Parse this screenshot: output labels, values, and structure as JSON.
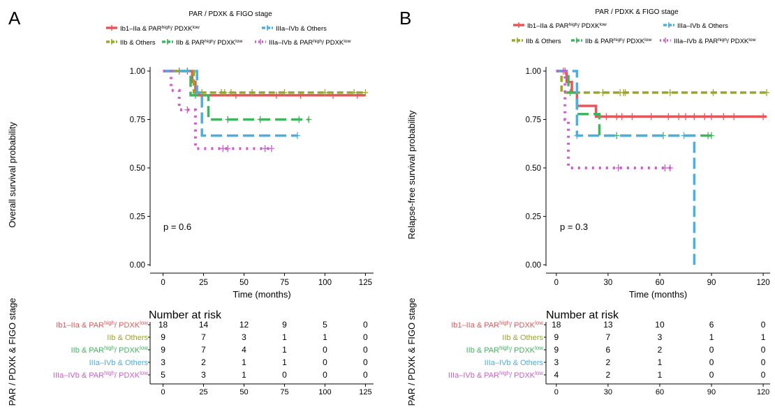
{
  "legend_title": "PAR / PDXK & FIGO stage",
  "strata_axis_label": "PAR / PDXK & FIGO stage",
  "risk_table_title": "Number at risk",
  "colors": {
    "red": "#E8555A",
    "olive": "#9AA52A",
    "green": "#3FB55F",
    "blue": "#4DAEE0",
    "magenta": "#CF5CCB"
  },
  "chart_data": [
    {
      "type": "line",
      "panel_label": "A",
      "title": "",
      "xlabel": "Time (months)",
      "ylabel": "Overall survival probability",
      "xlim": [
        -8,
        130
      ],
      "ylim": [
        0,
        1
      ],
      "x_ticks": [
        0,
        25,
        50,
        75,
        100,
        125
      ],
      "y_ticks": [
        "0.00",
        "0.25",
        "0.50",
        "0.75",
        "1.00"
      ],
      "annotation": "p = 0.6",
      "grid": false,
      "legend_position": "top",
      "series": [
        {
          "name_main": "Ib1–IIa & PAR",
          "name_sup1": "high",
          "name_mid": "/ PDXK",
          "name_sup2": "low",
          "color": "red",
          "dash": "solid",
          "legend_row": 0,
          "legend_col": 0,
          "steps": [
            [
              0,
              1.0
            ],
            [
              18,
              0.944
            ],
            [
              20,
              0.889
            ],
            [
              22,
              0.875
            ],
            [
              125,
              0.875
            ]
          ],
          "censors": [
            10,
            15,
            45,
            70,
            85,
            105,
            120
          ],
          "risk": [
            18,
            14,
            12,
            9,
            5,
            0
          ]
        },
        {
          "name_main": "IIb & Others",
          "name_sup1": "",
          "name_mid": "",
          "name_sup2": "",
          "color": "olive",
          "dash": "dash",
          "legend_row": 1,
          "legend_col": 0,
          "steps": [
            [
              0,
              1.0
            ],
            [
              19,
              0.889
            ],
            [
              125,
              0.889
            ]
          ],
          "censors": [
            24,
            36,
            38,
            42,
            55,
            75,
            100,
            118,
            125
          ],
          "risk": [
            9,
            7,
            3,
            1,
            1,
            0
          ]
        },
        {
          "name_main": "IIb & PAR",
          "name_sup1": "high",
          "name_mid": "/ PDXK",
          "name_sup2": "low",
          "color": "green",
          "dash": "longdash",
          "legend_row": 1,
          "legend_col": 1,
          "steps": [
            [
              0,
              1.0
            ],
            [
              17,
              0.875
            ],
            [
              28,
              0.75
            ],
            [
              90,
              0.75
            ]
          ],
          "censors": [
            20,
            40,
            60,
            84,
            90
          ],
          "risk": [
            9,
            7,
            4,
            1,
            0,
            0
          ]
        },
        {
          "name_main": "IIIa–IVb & Others",
          "name_sup1": "",
          "name_mid": "",
          "name_sup2": "",
          "color": "blue",
          "dash": "longdash",
          "legend_row": 0,
          "legend_col": 1,
          "steps": [
            [
              0,
              1.0
            ],
            [
              20,
              1.0
            ],
            [
              21,
              0.889
            ],
            [
              24,
              0.667
            ],
            [
              83,
              0.667
            ]
          ],
          "censors": [
            83
          ],
          "risk": [
            3,
            2,
            1,
            1,
            0,
            0
          ]
        },
        {
          "name_main": "IIIa–IVb & PAR",
          "name_sup1": "high",
          "name_mid": "/ PDXK",
          "name_sup2": "low",
          "color": "magenta",
          "dash": "dot",
          "legend_row": 1,
          "legend_col": 2,
          "steps": [
            [
              0,
              1.0
            ],
            [
              5,
              0.9
            ],
            [
              10,
              0.8
            ],
            [
              20,
              0.6
            ],
            [
              67,
              0.6
            ]
          ],
          "censors": [
            15,
            37,
            40,
            63,
            67
          ],
          "risk": [
            5,
            3,
            1,
            0,
            0,
            0
          ]
        }
      ]
    },
    {
      "type": "line",
      "panel_label": "B",
      "title": "",
      "xlabel": "Time (months)",
      "ylabel": "Relapse-free survival probability",
      "xlim": [
        -6,
        124
      ],
      "ylim": [
        0,
        1
      ],
      "x_ticks": [
        0,
        30,
        60,
        90,
        120
      ],
      "y_ticks": [
        "0.00",
        "0.25",
        "0.50",
        "0.75",
        "1.00"
      ],
      "annotation": "p = 0.3",
      "grid": false,
      "legend_position": "top",
      "series": [
        {
          "name_main": "Ib1–IIa & PAR",
          "name_sup1": "high",
          "name_mid": "/ PDXK",
          "name_sup2": "low",
          "color": "red",
          "dash": "solid",
          "legend_row": 0,
          "legend_col": 0,
          "steps": [
            [
              0,
              1.0
            ],
            [
              6,
              0.944
            ],
            [
              9,
              0.889
            ],
            [
              12,
              0.82
            ],
            [
              23,
              0.765
            ],
            [
              122,
              0.765
            ]
          ],
          "censors": [
            5,
            29,
            35,
            38,
            44,
            55,
            65,
            71,
            75,
            80,
            86,
            90,
            97,
            103,
            120
          ],
          "risk": [
            18,
            13,
            10,
            6,
            0
          ]
        },
        {
          "name_main": "IIb & Others",
          "name_sup1": "",
          "name_mid": "",
          "name_sup2": "",
          "color": "olive",
          "dash": "dash",
          "legend_row": 1,
          "legend_col": 0,
          "steps": [
            [
              0,
              1.0
            ],
            [
              3,
              0.889
            ],
            [
              122,
              0.889
            ]
          ],
          "censors": [
            27,
            37,
            39,
            40,
            66,
            91,
            122
          ],
          "risk": [
            9,
            7,
            3,
            1,
            1
          ]
        },
        {
          "name_main": "IIb & PAR",
          "name_sup1": "high",
          "name_mid": "/ PDXK",
          "name_sup2": "low",
          "color": "green",
          "dash": "longdash",
          "legend_row": 1,
          "legend_col": 1,
          "steps": [
            [
              0,
              1.0
            ],
            [
              7,
              0.889
            ],
            [
              12,
              0.778
            ],
            [
              25,
              0.667
            ],
            [
              90,
              0.667
            ]
          ],
          "censors": [
            8,
            35,
            62,
            88,
            90
          ],
          "risk": [
            9,
            6,
            2,
            0,
            0
          ]
        },
        {
          "name_main": "IIIa–IVb & Others",
          "name_sup1": "",
          "name_mid": "",
          "name_sup2": "",
          "color": "blue",
          "dash": "longdash",
          "legend_row": 0,
          "legend_col": 1,
          "steps": [
            [
              0,
              1.0
            ],
            [
              12,
              0.667
            ],
            [
              80,
              0.667
            ],
            [
              80,
              0.0
            ]
          ],
          "censors": [
            12,
            74
          ],
          "risk": [
            3,
            2,
            1,
            0,
            0
          ]
        },
        {
          "name_main": "IIIa–IVb & PAR",
          "name_sup1": "high",
          "name_mid": "/ PDXK",
          "name_sup2": "low",
          "color": "magenta",
          "dash": "dot",
          "legend_row": 1,
          "legend_col": 2,
          "steps": [
            [
              0,
              1.0
            ],
            [
              5,
              0.75
            ],
            [
              7,
              0.5
            ],
            [
              67,
              0.5
            ]
          ],
          "censors": [
            4,
            36,
            63,
            66
          ],
          "risk": [
            4,
            2,
            1,
            0,
            0
          ]
        }
      ]
    }
  ]
}
